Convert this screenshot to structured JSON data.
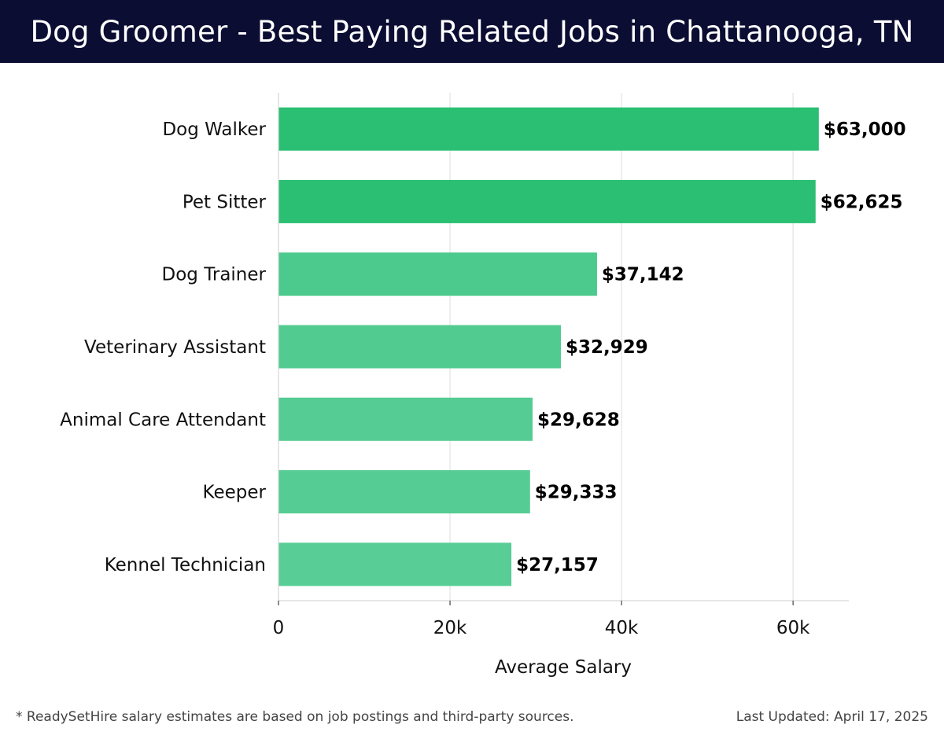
{
  "header": {
    "title": "Dog Groomer - Best Paying Related Jobs in Chattanooga, TN"
  },
  "chart_data": {
    "type": "bar",
    "orientation": "horizontal",
    "title": "Dog Groomer - Best Paying Related Jobs in Chattanooga, TN",
    "xlabel": "Average Salary",
    "ylabel": "",
    "xlim": [
      0,
      66500
    ],
    "x_ticks": [
      0,
      20000,
      40000,
      60000
    ],
    "x_tick_labels": [
      "0",
      "20k",
      "40k",
      "60k"
    ],
    "grid": true,
    "categories": [
      "Dog Walker",
      "Pet Sitter",
      "Dog Trainer",
      "Veterinary Assistant",
      "Animal Care Attendant",
      "Keeper",
      "Kennel Technician"
    ],
    "values": [
      63000,
      62625,
      37142,
      32929,
      29628,
      29333,
      27157
    ],
    "value_labels": [
      "$63,000",
      "$62,625",
      "$37,142",
      "$32,929",
      "$29,628",
      "$29,333",
      "$27,157"
    ],
    "bar_colors": [
      "#2bbf73",
      "#2bbf73",
      "#4cc98c",
      "#52cb90",
      "#55cc93",
      "#55cc93",
      "#58cd95"
    ]
  },
  "footer": {
    "note": "* ReadySetHire salary estimates are based on job postings and third-party sources.",
    "updated": "Last Updated: April 17, 2025"
  }
}
